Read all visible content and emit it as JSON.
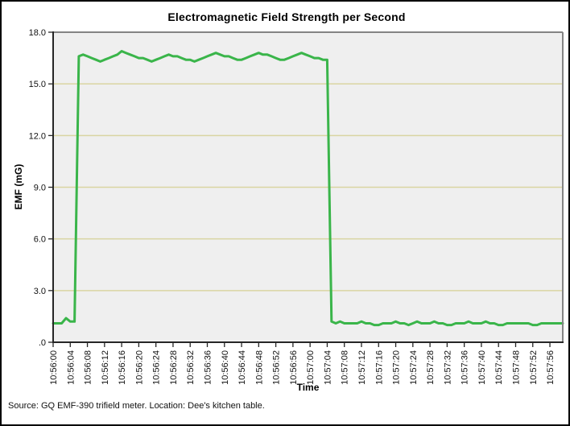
{
  "page": {
    "background": "#ffffff",
    "border_color": "#000000"
  },
  "footer": {
    "source_note": "Source: GQ EMF-390 trifield meter. Location: Dee's kitchen table."
  },
  "chart_data": {
    "type": "line",
    "title": "Electromagnetic Field Strength per Second",
    "xlabel": "Time",
    "ylabel": "EMF (mG)",
    "ylim": [
      0,
      18
    ],
    "grid": "horizontal-only",
    "legend": "none",
    "plot_bg": "#efefef",
    "gridline_color": "#d9d5a2",
    "frame_color_top_right": "#848484",
    "axis_color": "#262626",
    "tick_label_color": "#111111",
    "ytick_values": [
      0,
      3,
      6,
      9,
      12,
      15,
      18
    ],
    "ytick_labels": [
      ".0",
      "3.0",
      "6.0",
      "9.0",
      "12.0",
      "15.0",
      "18.0"
    ],
    "x_start_time": "10:56:00",
    "x_interval_seconds": 1,
    "x_tick_seconds": [
      0,
      4,
      8,
      12,
      16,
      20,
      24,
      28,
      32,
      36,
      40,
      44,
      48,
      52,
      56,
      60,
      64,
      68,
      72,
      76,
      80,
      84,
      88,
      92,
      96,
      100,
      104,
      108,
      112,
      116
    ],
    "x_tick_labels": [
      "10:56:00",
      "10:56:04",
      "10:56:08",
      "10:56:12",
      "10:56:16",
      "10:56:20",
      "10:56:24",
      "10:56:28",
      "10:56:32",
      "10:56:36",
      "10:56:40",
      "10:56:44",
      "10:56:48",
      "10:56:52",
      "10:56:56",
      "10:57:00",
      "10:57:04",
      "10:57:08",
      "10:57:12",
      "10:57:16",
      "10:57:20",
      "10:57:24",
      "10:57:28",
      "10:57:32",
      "10:57:36",
      "10:57:40",
      "10:57:44",
      "10:57:48",
      "10:57:52",
      "10:57:56"
    ],
    "series": [
      {
        "name": "EMF (mG)",
        "color": "#3ab54a",
        "line_width": 3,
        "values": [
          1.1,
          1.1,
          1.1,
          1.4,
          1.2,
          1.2,
          16.6,
          16.7,
          16.6,
          16.5,
          16.4,
          16.3,
          16.4,
          16.5,
          16.6,
          16.7,
          16.9,
          16.8,
          16.7,
          16.6,
          16.5,
          16.5,
          16.4,
          16.3,
          16.4,
          16.5,
          16.6,
          16.7,
          16.6,
          16.6,
          16.5,
          16.4,
          16.4,
          16.3,
          16.4,
          16.5,
          16.6,
          16.7,
          16.8,
          16.7,
          16.6,
          16.6,
          16.5,
          16.4,
          16.4,
          16.5,
          16.6,
          16.7,
          16.8,
          16.7,
          16.7,
          16.6,
          16.5,
          16.4,
          16.4,
          16.5,
          16.6,
          16.7,
          16.8,
          16.7,
          16.6,
          16.5,
          16.5,
          16.4,
          16.4,
          1.2,
          1.1,
          1.2,
          1.1,
          1.1,
          1.1,
          1.1,
          1.2,
          1.1,
          1.1,
          1.0,
          1.0,
          1.1,
          1.1,
          1.1,
          1.2,
          1.1,
          1.1,
          1.0,
          1.1,
          1.2,
          1.1,
          1.1,
          1.1,
          1.2,
          1.1,
          1.1,
          1.0,
          1.0,
          1.1,
          1.1,
          1.1,
          1.2,
          1.1,
          1.1,
          1.1,
          1.2,
          1.1,
          1.1,
          1.0,
          1.0,
          1.1,
          1.1,
          1.1,
          1.1,
          1.1,
          1.1,
          1.0,
          1.0,
          1.1,
          1.1,
          1.1,
          1.1,
          1.1,
          1.1
        ]
      }
    ]
  }
}
